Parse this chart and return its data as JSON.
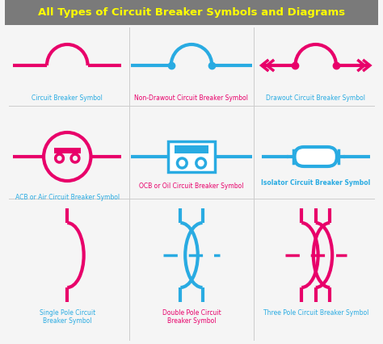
{
  "title": "All Types of Circuit Breaker Symbols and Diagrams",
  "title_color": "#FFFF00",
  "title_bg": "#7a7a7a",
  "bg_color": "#f5f5f5",
  "pink": "#E8006A",
  "blue": "#29ABE2",
  "lw": 3.0,
  "labels": {
    "cb": "Circuit Breaker Symbol",
    "ndcb": "Non-Drawout Circuit Breaker Symbol",
    "dcb": "Drawout Circuit Breaker Symbol",
    "acb": "ACB or Air Circuit Breaker Symbol",
    "ocb": "OCB or Oil Circuit Breaker Symbol",
    "iso": "Isolator Circuit Breaker Symbol",
    "single": "Single Pole Circuit\nBreaker Symbol",
    "double": "Double Pole Circuit\nBreaker Symbol",
    "three": "Three Pole Circuit Breaker Symbol"
  }
}
